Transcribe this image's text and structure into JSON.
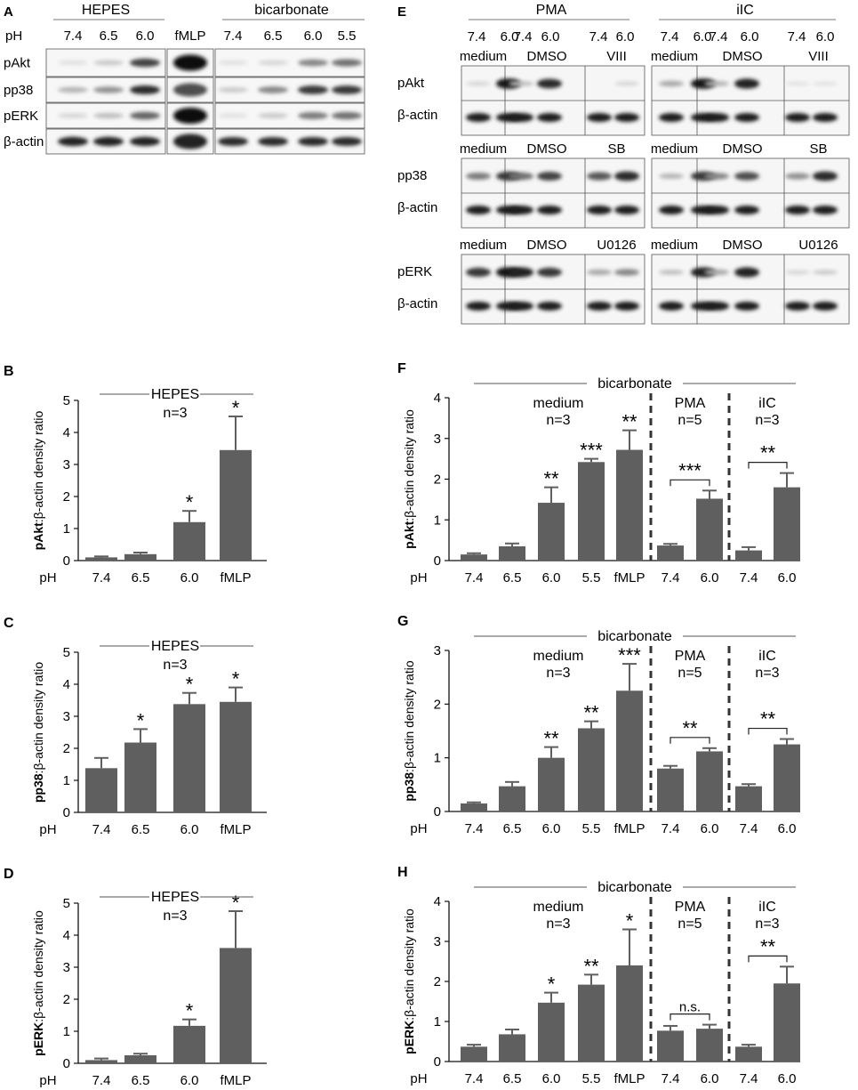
{
  "blots": {
    "A": {
      "panel": "A",
      "groups": [
        {
          "label": "HEPES",
          "lanes": [
            "7.4",
            "6.5",
            "6.0"
          ]
        },
        {
          "label": "",
          "lanes": [
            "fMLP"
          ]
        },
        {
          "label": "bicarbonate",
          "lanes": [
            "7.4",
            "6.5",
            "6.0",
            "5.5"
          ]
        }
      ],
      "ph_label": "pH",
      "rows": [
        {
          "label": "pAkt",
          "intensity": [
            [
              0.05,
              0.15,
              0.75
            ],
            [
              1.0
            ],
            [
              0.05,
              0.1,
              0.45,
              0.55
            ]
          ]
        },
        {
          "label": "pp38",
          "intensity": [
            [
              0.25,
              0.4,
              0.85
            ],
            [
              0.7
            ],
            [
              0.15,
              0.45,
              0.8,
              0.8
            ]
          ]
        },
        {
          "label": "pERK",
          "intensity": [
            [
              0.1,
              0.2,
              0.6
            ],
            [
              1.0
            ],
            [
              0.05,
              0.15,
              0.5,
              0.55
            ]
          ]
        },
        {
          "label": "β-actin",
          "intensity": [
            [
              0.9,
              0.9,
              0.9
            ],
            [
              0.9
            ],
            [
              0.85,
              0.85,
              0.85,
              0.85
            ]
          ]
        }
      ]
    },
    "E": {
      "panel": "E",
      "stimuli": [
        "PMA",
        "iIC"
      ],
      "lanes": [
        "7.4",
        "6.0",
        "7.4",
        "6.0",
        "7.4",
        "6.0"
      ],
      "sections": [
        {
          "conditions": [
            "medium",
            "DMSO",
            "VIII"
          ],
          "target": "pAkt",
          "pma": [
            0.1,
            0.95,
            0.2,
            0.85,
            0.0,
            0.1
          ],
          "iic": [
            0.3,
            0.95,
            0.25,
            0.9,
            0.05,
            0.05
          ]
        },
        {
          "conditions": [
            "medium",
            "DMSO",
            "SB"
          ],
          "target": "pp38",
          "pma": [
            0.5,
            0.8,
            0.55,
            0.75,
            0.65,
            0.85
          ],
          "iic": [
            0.25,
            0.8,
            0.45,
            0.7,
            0.4,
            0.85
          ]
        },
        {
          "conditions": [
            "medium",
            "DMSO",
            "U0126"
          ],
          "target": "pERK",
          "pma": [
            0.8,
            0.95,
            0.9,
            0.8,
            0.3,
            0.45
          ],
          "iic": [
            0.2,
            0.9,
            0.3,
            0.9,
            0.1,
            0.15
          ]
        }
      ],
      "actin_label": "β-actin"
    }
  },
  "chart_data": [
    {
      "panel": "B",
      "type": "bar",
      "categories": [
        "7.4",
        "6.5",
        "6.0",
        "fMLP"
      ],
      "values": [
        0.1,
        0.2,
        1.2,
        3.45
      ],
      "errors": [
        0.03,
        0.05,
        0.35,
        1.05
      ],
      "sig": [
        "",
        "",
        "*",
        "*"
      ],
      "group_title": "HEPES",
      "n_label": "n=3",
      "ylabel_bold": "pAkt",
      "ylabel_rest": ":β-actin density ratio",
      "xlabel": "pH",
      "ylim": [
        0,
        5
      ],
      "yticks": [
        "0",
        "1",
        "2",
        "3",
        "4",
        "5"
      ]
    },
    {
      "panel": "C",
      "type": "bar",
      "categories": [
        "7.4",
        "6.5",
        "6.0",
        "fMLP"
      ],
      "values": [
        1.38,
        2.18,
        3.38,
        3.45
      ],
      "errors": [
        0.32,
        0.42,
        0.35,
        0.45
      ],
      "sig": [
        "",
        "*",
        "*",
        "*"
      ],
      "group_title": "HEPES",
      "n_label": "n=3",
      "ylabel_bold": "pp38",
      "ylabel_rest": ":β-actin density ratio",
      "xlabel": "pH",
      "ylim": [
        0,
        5
      ],
      "yticks": [
        "0",
        "1",
        "2",
        "3",
        "4",
        "5"
      ]
    },
    {
      "panel": "D",
      "type": "bar",
      "categories": [
        "7.4",
        "6.5",
        "6.0",
        "fMLP"
      ],
      "values": [
        0.1,
        0.25,
        1.17,
        3.6
      ],
      "errors": [
        0.05,
        0.05,
        0.2,
        1.15
      ],
      "sig": [
        "",
        "",
        "*",
        "*"
      ],
      "group_title": "HEPES",
      "n_label": "n=3",
      "ylabel_bold": "pERK",
      "ylabel_rest": ":β-actin density ratio",
      "xlabel": "pH",
      "ylim": [
        0,
        5
      ],
      "yticks": [
        "0",
        "1",
        "2",
        "3",
        "4",
        "5"
      ]
    },
    {
      "panel": "F",
      "type": "bar",
      "categories": [
        "7.4",
        "6.5",
        "6.0",
        "5.5",
        "fMLP",
        "7.4",
        "6.0",
        "7.4",
        "6.0"
      ],
      "values": [
        0.15,
        0.35,
        1.42,
        2.42,
        2.72,
        0.37,
        1.52,
        0.25,
        1.8
      ],
      "errors": [
        0.03,
        0.07,
        0.38,
        0.08,
        0.48,
        0.04,
        0.2,
        0.08,
        0.35
      ],
      "sig": [
        "",
        "",
        "**",
        "***",
        "**",
        "",
        "",
        "",
        ""
      ],
      "brackets": [
        {
          "from": 5,
          "to": 6,
          "label": "***"
        },
        {
          "from": 7,
          "to": 8,
          "label": "**"
        }
      ],
      "top_label": "bicarbonate",
      "subgroups": [
        {
          "title": "medium",
          "n": "n=3",
          "from": 0,
          "to": 4
        },
        {
          "title": "PMA",
          "n": "n=5",
          "from": 5,
          "to": 6
        },
        {
          "title": "iIC",
          "n": "n=3",
          "from": 7,
          "to": 8
        }
      ],
      "ylabel_bold": "pAkt",
      "ylabel_rest": ":β-actin density ratio",
      "xlabel": "pH",
      "ylim": [
        0,
        4
      ],
      "yticks": [
        "0",
        "1",
        "2",
        "3",
        "4"
      ]
    },
    {
      "panel": "G",
      "type": "bar",
      "categories": [
        "7.4",
        "6.5",
        "6.0",
        "5.5",
        "fMLP",
        "7.4",
        "6.0",
        "7.4",
        "6.0"
      ],
      "values": [
        0.15,
        0.47,
        1.0,
        1.55,
        2.25,
        0.8,
        1.12,
        0.47,
        1.25
      ],
      "errors": [
        0.02,
        0.08,
        0.2,
        0.13,
        0.5,
        0.05,
        0.06,
        0.04,
        0.1
      ],
      "sig": [
        "",
        "",
        "**",
        "**",
        "***",
        "",
        "",
        "",
        ""
      ],
      "brackets": [
        {
          "from": 5,
          "to": 6,
          "label": "**"
        },
        {
          "from": 7,
          "to": 8,
          "label": "**"
        }
      ],
      "top_label": "bicarbonate",
      "subgroups": [
        {
          "title": "medium",
          "n": "n=3",
          "from": 0,
          "to": 4
        },
        {
          "title": "PMA",
          "n": "n=5",
          "from": 5,
          "to": 6
        },
        {
          "title": "iIC",
          "n": "n=3",
          "from": 7,
          "to": 8
        }
      ],
      "ylabel_bold": "pp38",
      "ylabel_rest": ":β-actin density ratio",
      "xlabel": "pH",
      "ylim": [
        0,
        3
      ],
      "yticks": [
        "0",
        "1",
        "2",
        "3"
      ]
    },
    {
      "panel": "H",
      "type": "bar",
      "categories": [
        "7.4",
        "6.5",
        "6.0",
        "5.5",
        "fMLP",
        "7.4",
        "6.0",
        "7.4",
        "6.0"
      ],
      "values": [
        0.37,
        0.68,
        1.47,
        1.92,
        2.4,
        0.77,
        0.82,
        0.37,
        1.95
      ],
      "errors": [
        0.05,
        0.12,
        0.25,
        0.25,
        0.9,
        0.12,
        0.1,
        0.05,
        0.42
      ],
      "sig": [
        "",
        "",
        "*",
        "**",
        "*",
        "",
        "",
        "",
        ""
      ],
      "brackets": [
        {
          "from": 5,
          "to": 6,
          "label": "n.s."
        },
        {
          "from": 7,
          "to": 8,
          "label": "**"
        }
      ],
      "top_label": "bicarbonate",
      "subgroups": [
        {
          "title": "medium",
          "n": "n=3",
          "from": 0,
          "to": 4
        },
        {
          "title": "PMA",
          "n": "n=5",
          "from": 5,
          "to": 6
        },
        {
          "title": "iIC",
          "n": "n=3",
          "from": 7,
          "to": 8
        }
      ],
      "ylabel_bold": "pERK",
      "ylabel_rest": ":β-actin density ratio",
      "xlabel": "pH",
      "ylim": [
        0,
        4
      ],
      "yticks": [
        "0",
        "1",
        "2",
        "3",
        "4"
      ]
    }
  ],
  "colors": {
    "bar": "#5f5f5f",
    "axis": "#111111",
    "divider": "#333333"
  }
}
